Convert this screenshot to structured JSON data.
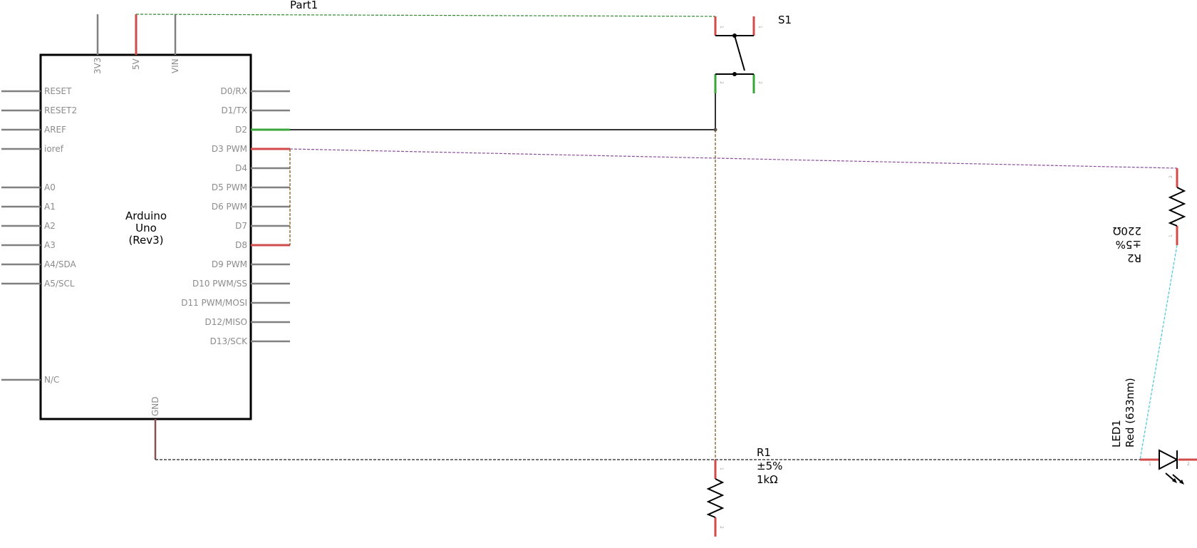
{
  "arduino": {
    "name_lines": [
      "Arduino",
      "Uno",
      "(Rev3)"
    ],
    "part_label": "Part1",
    "top_pins": [
      "3V3",
      "5V",
      "VIN"
    ],
    "bottom_pin": "GND",
    "left_pins": [
      "RESET",
      "RESET2",
      "AREF",
      "ioref",
      "A0",
      "A1",
      "A2",
      "A3",
      "A4/SDA",
      "A5/SCL",
      "N/C"
    ],
    "right_pins": [
      "D0/RX",
      "D1/TX",
      "D2",
      "D3 PWM",
      "D4",
      "D5 PWM",
      "D6 PWM",
      "D7",
      "D8",
      "D9 PWM",
      "D10 PWM/SS",
      "D11 PWM/MOSI",
      "D12/MISO",
      "D13/SCK"
    ]
  },
  "switch": {
    "label": "S1",
    "pin_marks": [
      "1",
      "1",
      "2",
      "2"
    ]
  },
  "r1": {
    "label": "R1",
    "tolerance": "±5%",
    "value": "1kΩ",
    "pin_marks": [
      "1",
      "2"
    ]
  },
  "r2": {
    "label": "R2",
    "tolerance": "±5%",
    "value": "220Ω",
    "pin_marks": [
      "2",
      "1"
    ]
  },
  "led": {
    "label": "LED1",
    "color": "Red (633nm)",
    "pin_marks": [
      "1",
      "2"
    ]
  },
  "colors": {
    "pin": "#808080",
    "connected": "#d24a4a",
    "connected_green": "#3aa63a",
    "rat_green": "#2e8b2e",
    "rat_purple": "#8a4f9a",
    "rat_brown": "#7a4a10",
    "rat_black": "#222222",
    "rat_cyan": "#46c8d6"
  }
}
